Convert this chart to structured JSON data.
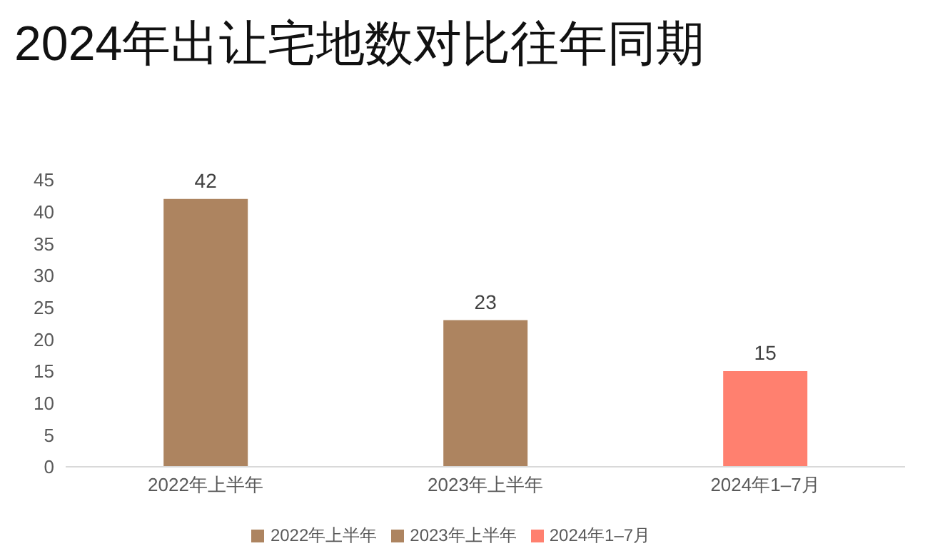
{
  "chart_data": {
    "type": "bar",
    "title": "2024年出让宅地数对比往年同期",
    "categories": [
      "2022年上半年",
      "2023年上半年",
      "2024年1–7月"
    ],
    "series": [
      {
        "name": "2022年上半年",
        "color": "#ad8460",
        "values": [
          42,
          null,
          null
        ]
      },
      {
        "name": "2023年上半年",
        "color": "#ad8460",
        "values": [
          null,
          23,
          null
        ]
      },
      {
        "name": "2024年1–7月",
        "color": "#ff806f",
        "values": [
          null,
          null,
          15
        ]
      }
    ],
    "ylim": [
      0,
      45
    ],
    "yticks": [
      0,
      5,
      10,
      15,
      20,
      25,
      30,
      35,
      40,
      45
    ],
    "grid": false,
    "legend": "bottom",
    "data_labels": true
  }
}
